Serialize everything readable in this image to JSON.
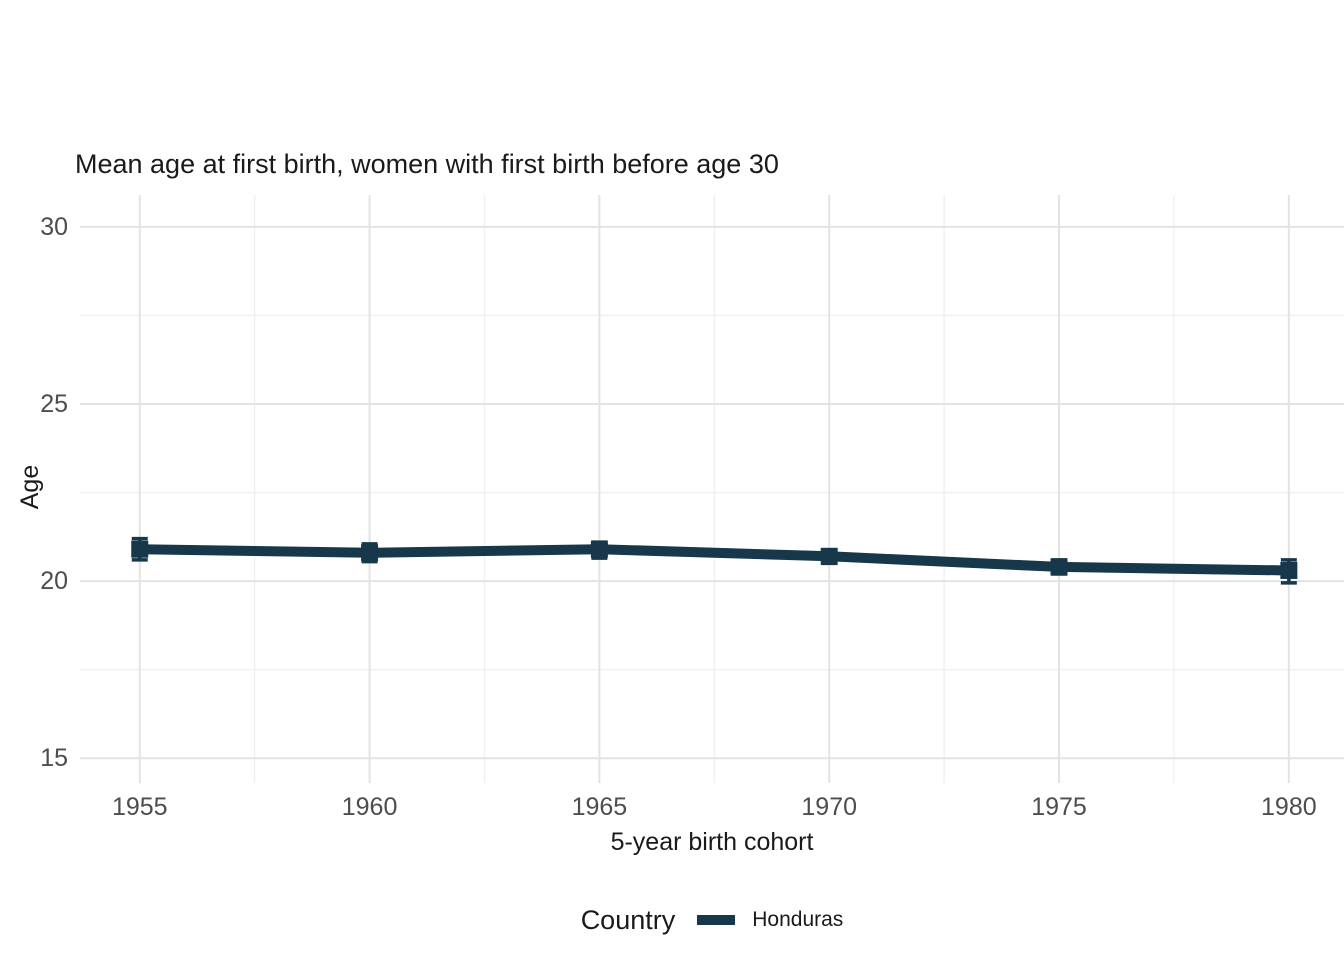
{
  "title": "Mean age at first birth, women with first birth before age 30",
  "legend": {
    "title": "Country",
    "series_label": "Honduras"
  },
  "colors": {
    "series": "#16384a",
    "grid_major": "#e3e3e3",
    "grid_minor": "#f0f0f0",
    "tick_text": "#4d4d4d",
    "title_text": "#1a1a1a",
    "background": "#ffffff"
  },
  "chart_data": {
    "type": "line",
    "title": "Mean age at first birth, women with first birth before age 30",
    "xlabel": "5-year birth cohort",
    "ylabel": "Age",
    "x": [
      1955,
      1960,
      1965,
      1970,
      1975,
      1980
    ],
    "x_tick_labels": [
      "1955",
      "1960",
      "1965",
      "1970",
      "1975",
      "1980"
    ],
    "y_ticks": [
      15,
      20,
      25,
      30
    ],
    "y_tick_labels": [
      "15",
      "20",
      "25",
      "30"
    ],
    "xlim": [
      1953.7,
      1981.2
    ],
    "ylim": [
      14.3,
      30.9
    ],
    "grid": "major and minor, light gray, no axis lines, white background",
    "legend_position": "bottom-center",
    "legend_title": "Country",
    "series": [
      {
        "name": "Honduras",
        "color": "#16384a",
        "marker": "square",
        "error_bars": true,
        "values": [
          20.9,
          20.8,
          20.9,
          20.7,
          20.4,
          20.3
        ],
        "ci_low": [
          20.6,
          20.55,
          20.65,
          20.5,
          20.2,
          19.95
        ],
        "ci_high": [
          21.2,
          21.05,
          21.1,
          20.85,
          20.6,
          20.6
        ]
      }
    ]
  }
}
